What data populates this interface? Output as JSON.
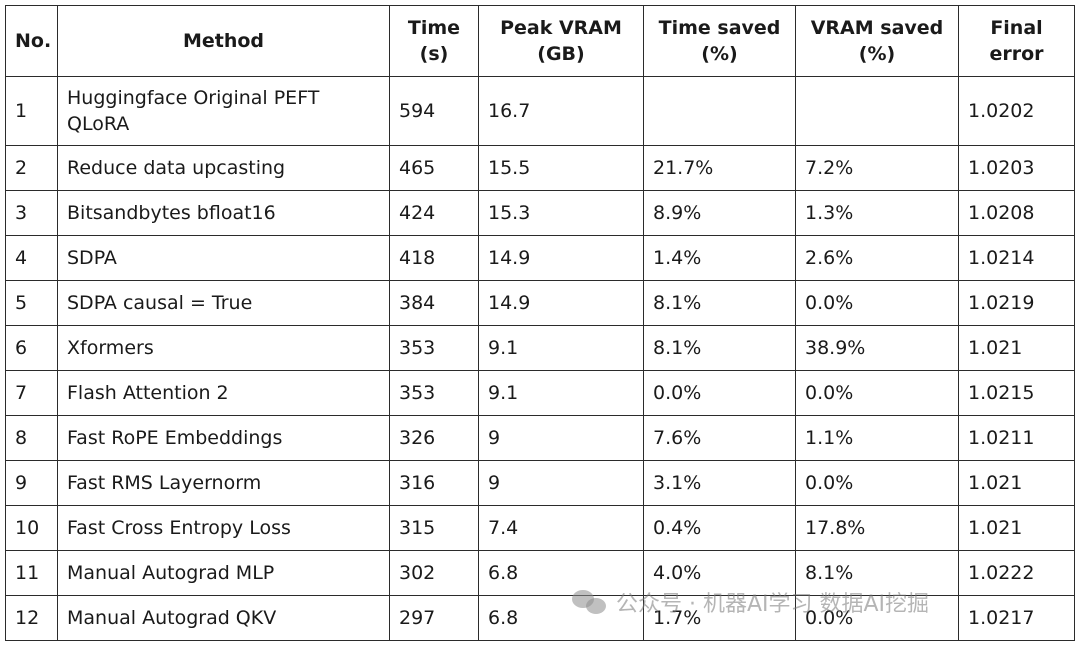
{
  "headers": {
    "no": "No.",
    "method": "Method",
    "time_l1": "Time",
    "time_l2": "(s)",
    "vram_l1": "Peak VRAM",
    "vram_l2": "(GB)",
    "ts_l1": "Time saved",
    "ts_l2": "(%)",
    "vs_l1": "VRAM saved",
    "vs_l2": "(%)",
    "fe_l1": "Final",
    "fe_l2": "error"
  },
  "rows": [
    {
      "no": "1",
      "method": "Huggingface Original PEFT QLoRA",
      "time": "594",
      "vram": "16.7",
      "time_saved": "",
      "vram_saved": "",
      "error": "1.0202"
    },
    {
      "no": "2",
      "method": "Reduce data upcasting",
      "time": "465",
      "vram": "15.5",
      "time_saved": "21.7%",
      "vram_saved": "7.2%",
      "error": "1.0203"
    },
    {
      "no": "3",
      "method": "Bitsandbytes bfloat16",
      "time": "424",
      "vram": "15.3",
      "time_saved": "8.9%",
      "vram_saved": "1.3%",
      "error": "1.0208"
    },
    {
      "no": "4",
      "method": "SDPA",
      "time": "418",
      "vram": "14.9",
      "time_saved": "1.4%",
      "vram_saved": "2.6%",
      "error": "1.0214"
    },
    {
      "no": "5",
      "method": "SDPA causal = True",
      "time": "384",
      "vram": "14.9",
      "time_saved": "8.1%",
      "vram_saved": "0.0%",
      "error": "1.0219"
    },
    {
      "no": "6",
      "method": "Xformers",
      "time": "353",
      "vram": "9.1",
      "time_saved": "8.1%",
      "vram_saved": "38.9%",
      "error": "1.021"
    },
    {
      "no": "7",
      "method": "Flash Attention 2",
      "time": "353",
      "vram": "9.1",
      "time_saved": "0.0%",
      "vram_saved": "0.0%",
      "error": "1.0215"
    },
    {
      "no": "8",
      "method": "Fast RoPE Embeddings",
      "time": "326",
      "vram": "9",
      "time_saved": "7.6%",
      "vram_saved": "1.1%",
      "error": "1.0211"
    },
    {
      "no": "9",
      "method": "Fast RMS Layernorm",
      "time": "316",
      "vram": "9",
      "time_saved": "3.1%",
      "vram_saved": "0.0%",
      "error": "1.021"
    },
    {
      "no": "10",
      "method": "Fast Cross Entropy Loss",
      "time": "315",
      "vram": "7.4",
      "time_saved": "0.4%",
      "vram_saved": "17.8%",
      "error": "1.021"
    },
    {
      "no": "11",
      "method": "Manual Autograd MLP",
      "time": "302",
      "vram": "6.8",
      "time_saved": "4.0%",
      "vram_saved": "8.1%",
      "error": "1.0222"
    },
    {
      "no": "12",
      "method": "Manual Autograd QKV",
      "time": "297",
      "vram": "6.8",
      "time_saved": "1.7%",
      "vram_saved": "0.0%",
      "error": "1.0217"
    }
  ],
  "watermark": {
    "text": "公众号 · 机器AI学习 数据AI挖掘",
    "icon": "wechat-icon"
  }
}
